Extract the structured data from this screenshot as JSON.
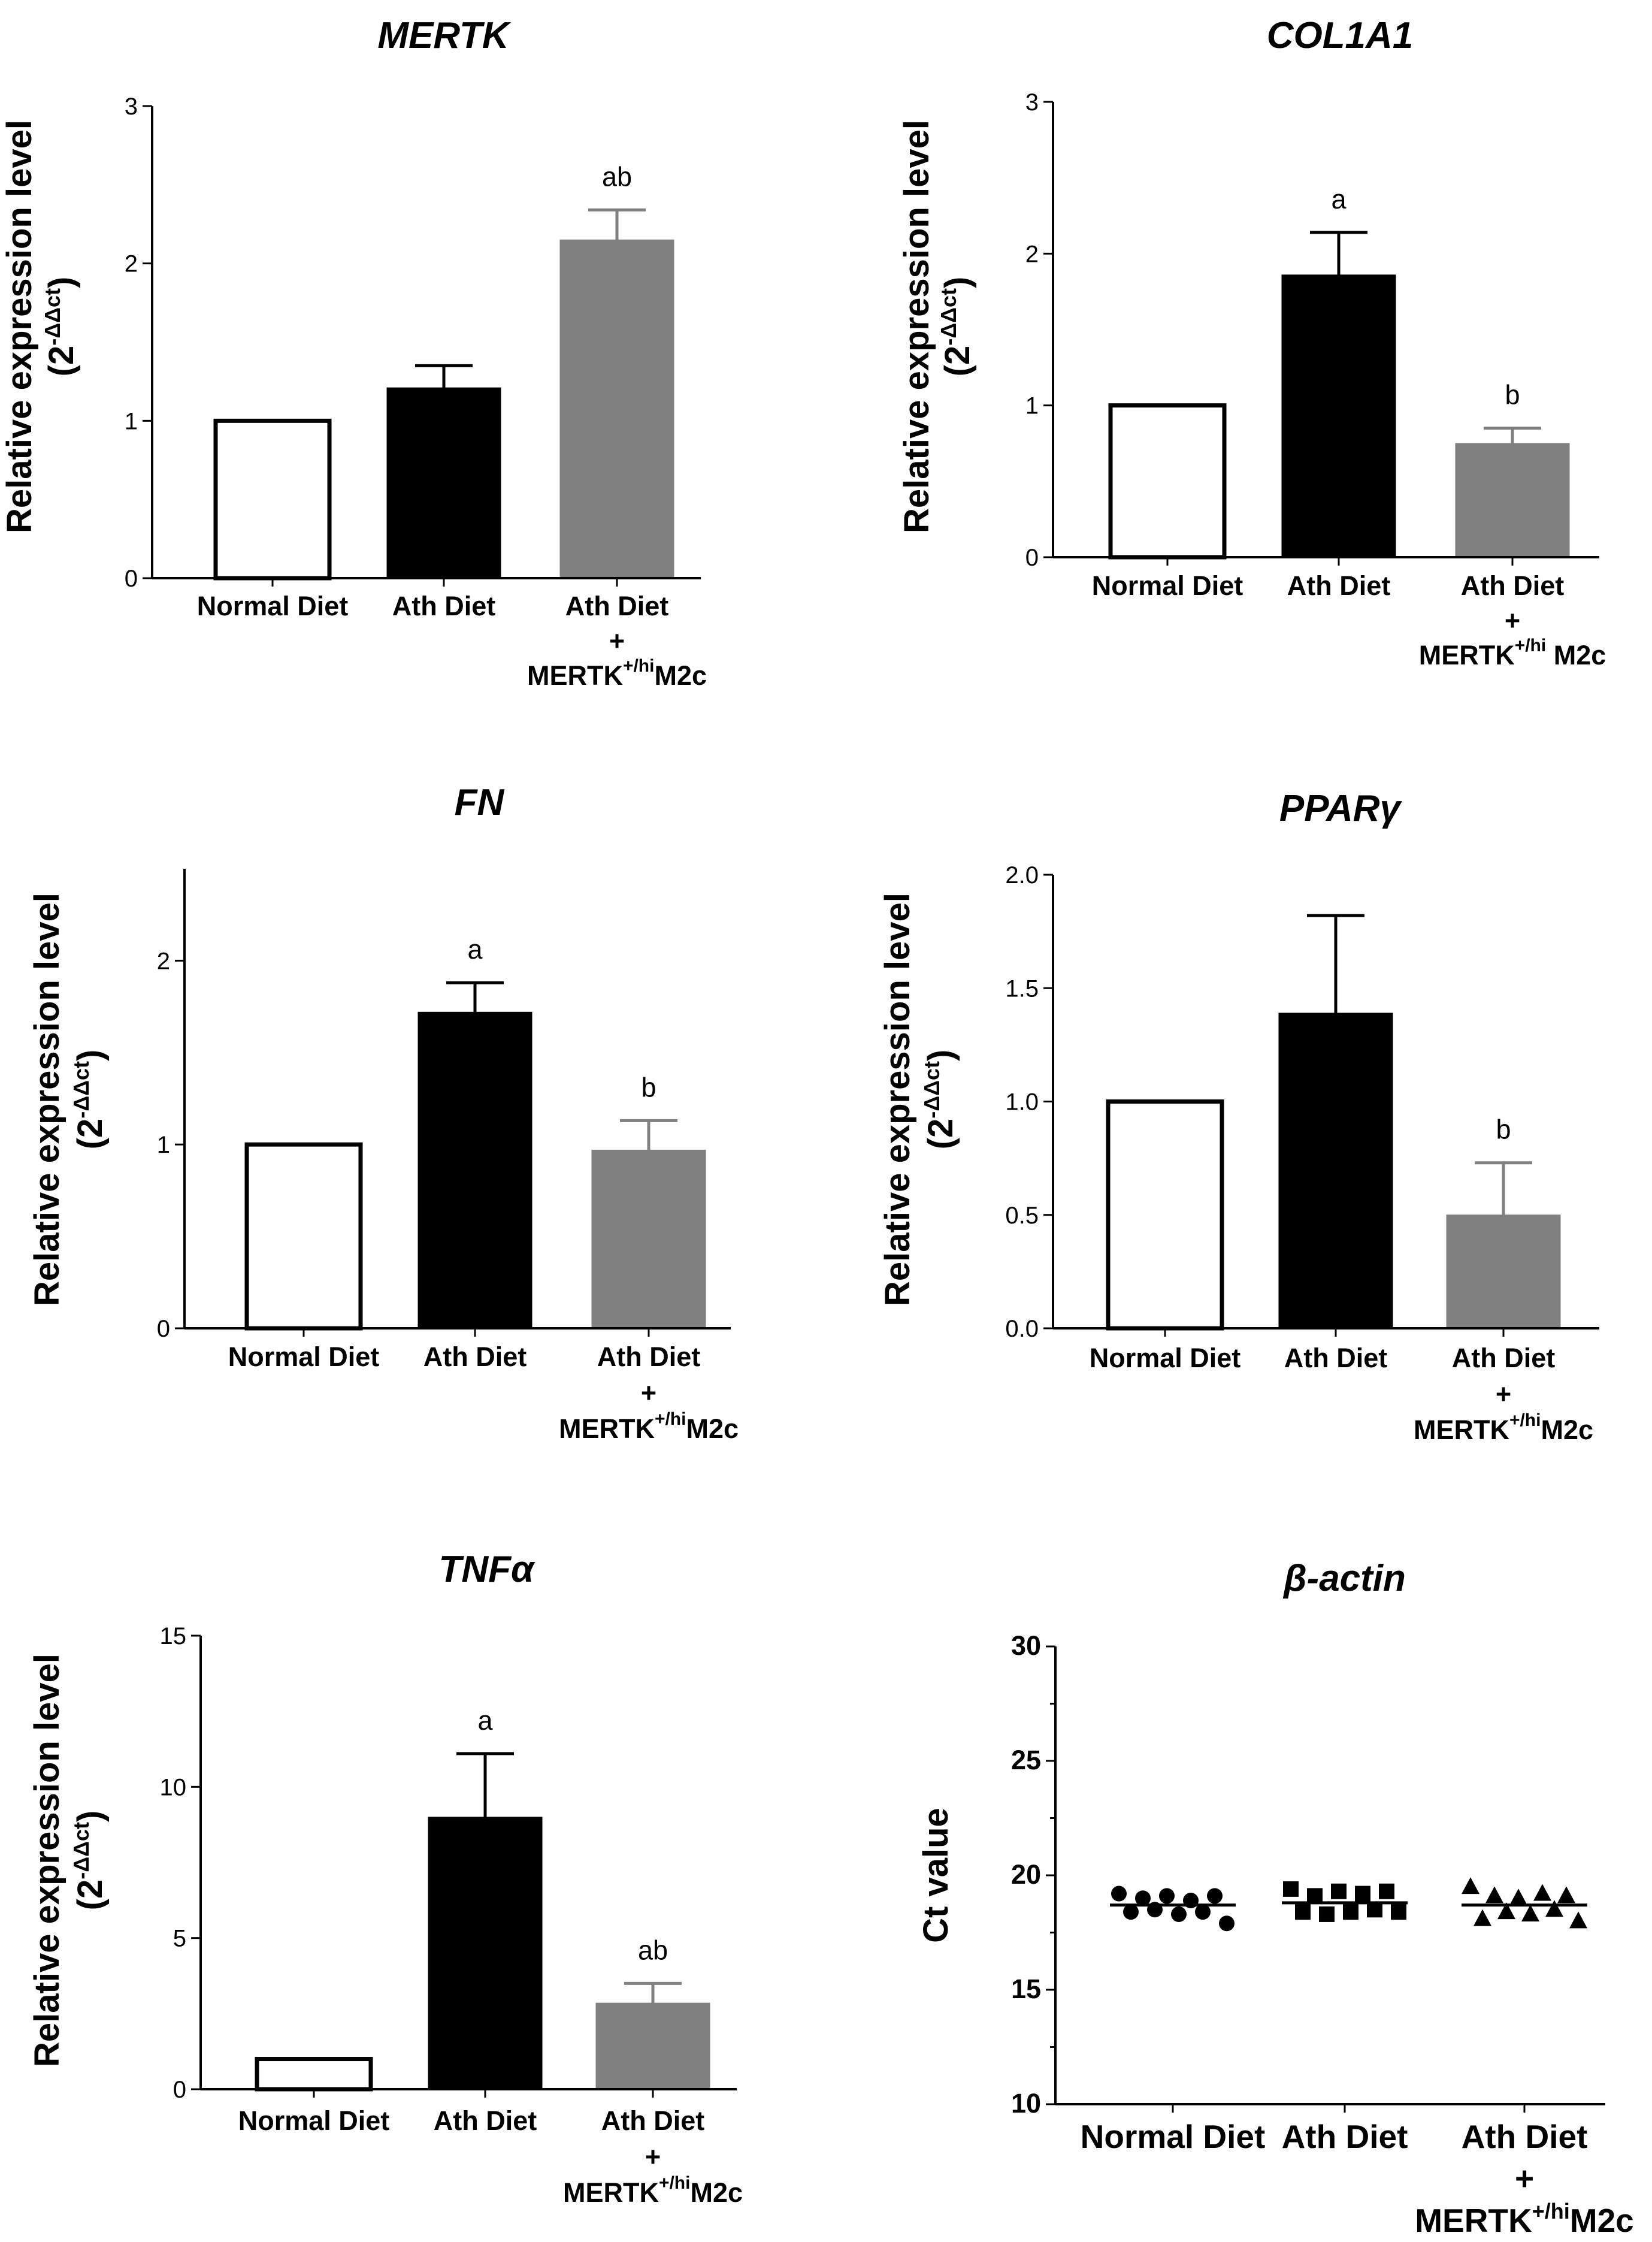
{
  "chart_data": [
    {
      "type": "bar",
      "title": "MERTK",
      "ylabel": "Relative expression level",
      "ylabel_unit": "(2-ΔΔct)",
      "ylim": [
        0,
        3
      ],
      "yticks": [
        0,
        1,
        2,
        3
      ],
      "categories": [
        {
          "lines": [
            "Normal Diet"
          ]
        },
        {
          "lines": [
            "Ath Diet"
          ]
        },
        {
          "lines": [
            "Ath Diet",
            "+",
            "MERTK+/hiM2c"
          ]
        }
      ],
      "values": [
        1.0,
        1.21,
        2.15
      ],
      "errors": [
        0,
        0.14,
        0.19
      ],
      "significance": [
        "",
        "",
        "ab"
      ],
      "colors": [
        "#ffffff",
        "#000000",
        "#808080"
      ]
    },
    {
      "type": "bar",
      "title": "COL1A1",
      "ylabel": "Relative expression level",
      "ylabel_unit": "(2-ΔΔct)",
      "ylim": [
        0,
        3
      ],
      "yticks": [
        0,
        1,
        2,
        3
      ],
      "categories": [
        {
          "lines": [
            "Normal Diet"
          ]
        },
        {
          "lines": [
            "Ath Diet"
          ]
        },
        {
          "lines": [
            "Ath Diet",
            "+",
            "MERTK+/hi M2c"
          ]
        }
      ],
      "values": [
        1.0,
        1.86,
        0.75
      ],
      "errors": [
        0,
        0.28,
        0.1
      ],
      "significance": [
        "",
        "a",
        "b"
      ],
      "colors": [
        "#ffffff",
        "#000000",
        "#808080"
      ]
    },
    {
      "type": "bar",
      "title": "FN",
      "ylabel": "Relative expression level",
      "ylabel_unit": "(2-ΔΔct)",
      "ylim": [
        0,
        2.5
      ],
      "yticks": [
        0,
        1,
        2
      ],
      "categories": [
        {
          "lines": [
            "Normal Diet"
          ]
        },
        {
          "lines": [
            "Ath Diet"
          ]
        },
        {
          "lines": [
            "Ath Diet",
            "+",
            "MERTK+/hiM2c"
          ]
        }
      ],
      "values": [
        1.0,
        1.72,
        0.97
      ],
      "errors": [
        0,
        0.16,
        0.16
      ],
      "significance": [
        "",
        "a",
        "b"
      ],
      "colors": [
        "#ffffff",
        "#000000",
        "#808080"
      ]
    },
    {
      "type": "bar",
      "title": "PPARγ",
      "ylabel": "Relative expression level",
      "ylabel_unit": "(2-ΔΔct)",
      "ylim": [
        0,
        2.0
      ],
      "yticks": [
        "0.0",
        "0.5",
        "1.0",
        "1.5",
        "2.0"
      ],
      "categories": [
        {
          "lines": [
            "Normal Diet"
          ]
        },
        {
          "lines": [
            "Ath Diet"
          ]
        },
        {
          "lines": [
            "Ath Diet",
            "+",
            "MERTK+/hiM2c"
          ]
        }
      ],
      "values": [
        1.0,
        1.39,
        0.5
      ],
      "errors": [
        0,
        0.43,
        0.23
      ],
      "significance": [
        "",
        "",
        "b"
      ],
      "colors": [
        "#ffffff",
        "#000000",
        "#808080"
      ]
    },
    {
      "type": "bar",
      "title": "TNFα",
      "ylabel": "Relative expression level",
      "ylabel_unit": "(2-ΔΔct)",
      "ylim": [
        0,
        15
      ],
      "yticks": [
        0,
        5,
        10,
        15
      ],
      "categories": [
        {
          "lines": [
            "Normal Diet"
          ]
        },
        {
          "lines": [
            "Ath Diet"
          ]
        },
        {
          "lines": [
            "Ath Diet",
            "+",
            "MERTK+/hiM2c"
          ]
        }
      ],
      "values": [
        1.0,
        9.0,
        2.85
      ],
      "errors": [
        0,
        2.1,
        0.65
      ],
      "significance": [
        "",
        "a",
        "ab"
      ],
      "colors": [
        "#ffffff",
        "#000000",
        "#808080"
      ]
    },
    {
      "type": "scatter",
      "title": "β-actin",
      "ylabel": "Ct value",
      "ylim": [
        10,
        30
      ],
      "yticks": [
        10,
        15,
        20,
        25,
        30
      ],
      "categories": [
        {
          "lines": [
            "Normal Diet"
          ]
        },
        {
          "lines": [
            "Ath Diet"
          ]
        },
        {
          "lines": [
            "Ath Diet",
            "+",
            "MERTK+/hiM2c"
          ]
        }
      ],
      "markers": [
        "circle",
        "square",
        "triangle"
      ],
      "points": [
        [
          19.2,
          18.4,
          19.0,
          18.5,
          19.1,
          18.3,
          18.9,
          18.4,
          19.1,
          17.9
        ],
        [
          19.4,
          18.4,
          19.1,
          18.3,
          19.3,
          18.4,
          19.2,
          18.5,
          19.3,
          18.4
        ],
        [
          19.5,
          18.1,
          19.1,
          18.4,
          19.0,
          18.3,
          19.2,
          18.5,
          19.1,
          18.0
        ]
      ],
      "means": [
        18.7,
        18.8,
        18.7
      ]
    }
  ]
}
